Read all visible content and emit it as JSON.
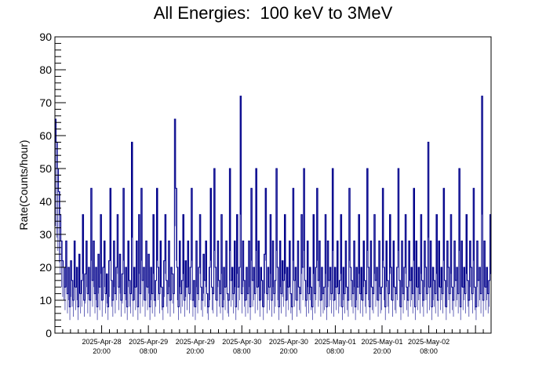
{
  "chart_data": {
    "type": "line",
    "title": "All Energies:  100 keV to 3MeV",
    "ylabel": "Rate(Counts/hour)",
    "xlabel": "",
    "ylim": [
      0,
      90
    ],
    "yticks": [
      0,
      10,
      20,
      30,
      40,
      50,
      60,
      70,
      80,
      90
    ],
    "x_range_hours": [
      0,
      112
    ],
    "xticks": [
      {
        "hour": 12,
        "line1": "2025-Apr-28",
        "line2": "20:00"
      },
      {
        "hour": 24,
        "line1": "2025-Apr-29",
        "line2": "08:00"
      },
      {
        "hour": 36,
        "line1": "2025-Apr-29",
        "line2": "20:00"
      },
      {
        "hour": 48,
        "line1": "2025-Apr-30",
        "line2": "08:00"
      },
      {
        "hour": 60,
        "line1": "2025-Apr-30",
        "line2": "20:00"
      },
      {
        "hour": 72,
        "line1": "2025-May-01",
        "line2": "08:00"
      },
      {
        "hour": 84,
        "line1": "2025-May-01",
        "line2": "20:00"
      },
      {
        "hour": 96,
        "line1": "2025-May-02",
        "line2": "08:00"
      }
    ],
    "grid": false,
    "color": "#00008b",
    "series": [
      {
        "name": "",
        "values": [
          65,
          58,
          50,
          43,
          36,
          28,
          22,
          20,
          14,
          28,
          12,
          20,
          8,
          22,
          16,
          10,
          28,
          14,
          20,
          8,
          24,
          12,
          16,
          36,
          10,
          18,
          28,
          12,
          20,
          10,
          44,
          16,
          28,
          12,
          20,
          8,
          24,
          14,
          36,
          10,
          20,
          28,
          12,
          18,
          8,
          22,
          44,
          16,
          10,
          28,
          12,
          20,
          36,
          14,
          24,
          10,
          18,
          44,
          12,
          20,
          8,
          28,
          16,
          12,
          58,
          10,
          20,
          14,
          28,
          8,
          36,
          12,
          44,
          16,
          20,
          10,
          28,
          14,
          24,
          8,
          20,
          12,
          36,
          10,
          16,
          44,
          20,
          12,
          28,
          14,
          8,
          22,
          36,
          16,
          12,
          28,
          10,
          20,
          18,
          12,
          65,
          44,
          20,
          8,
          28,
          12,
          16,
          36,
          10,
          22,
          14,
          28,
          12,
          20,
          44,
          10,
          16,
          8,
          28,
          12,
          20,
          36,
          14,
          10,
          24,
          16,
          28,
          12,
          8,
          20,
          44,
          14,
          12,
          50,
          20,
          10,
          28,
          16,
          12,
          36,
          8,
          20,
          14,
          28,
          12,
          10,
          50,
          16,
          20,
          12,
          28,
          8,
          36,
          14,
          20,
          72,
          12,
          28,
          16,
          10,
          20,
          12,
          28,
          8,
          44,
          16,
          20,
          12,
          50,
          14,
          28,
          10,
          20,
          16,
          8,
          24,
          44,
          12,
          20,
          14,
          36,
          10,
          28,
          12,
          16,
          50,
          20,
          8,
          28,
          12,
          22,
          16,
          36,
          10,
          20,
          14,
          28,
          12,
          8,
          44,
          16,
          20,
          10,
          28,
          14,
          12,
          36,
          20,
          50,
          16,
          10,
          28,
          12,
          20,
          14,
          8,
          36,
          12,
          20,
          44,
          16,
          28,
          10,
          20,
          12,
          14,
          36,
          8,
          28,
          16,
          20,
          12,
          50,
          10,
          20,
          14,
          28,
          12,
          16,
          36,
          8,
          20,
          12,
          28,
          14,
          10,
          44,
          20,
          16,
          12,
          28,
          8,
          20,
          14,
          36,
          12,
          20,
          10,
          28,
          16,
          12,
          50,
          20,
          8,
          28,
          14,
          12,
          36,
          16,
          20,
          10,
          28,
          12,
          14,
          44,
          20,
          8,
          28,
          16,
          12,
          36,
          20,
          10,
          28,
          14,
          12,
          20,
          50,
          16,
          8,
          28,
          12,
          20,
          36,
          14,
          10,
          28,
          16,
          20,
          12,
          44,
          8,
          28,
          14,
          20,
          12,
          36,
          16,
          10,
          28,
          20,
          12,
          58,
          14,
          28,
          8,
          20,
          16,
          12,
          36,
          10,
          28,
          14,
          20,
          12,
          44,
          16,
          8,
          28,
          20,
          12,
          36,
          14,
          10,
          28,
          16,
          20,
          12,
          50,
          8,
          28,
          14,
          20,
          12,
          36,
          16,
          10,
          28,
          20,
          12,
          44,
          14,
          8,
          28,
          16,
          20,
          12,
          72,
          10,
          28,
          14,
          20,
          12,
          16,
          36
        ]
      }
    ]
  }
}
